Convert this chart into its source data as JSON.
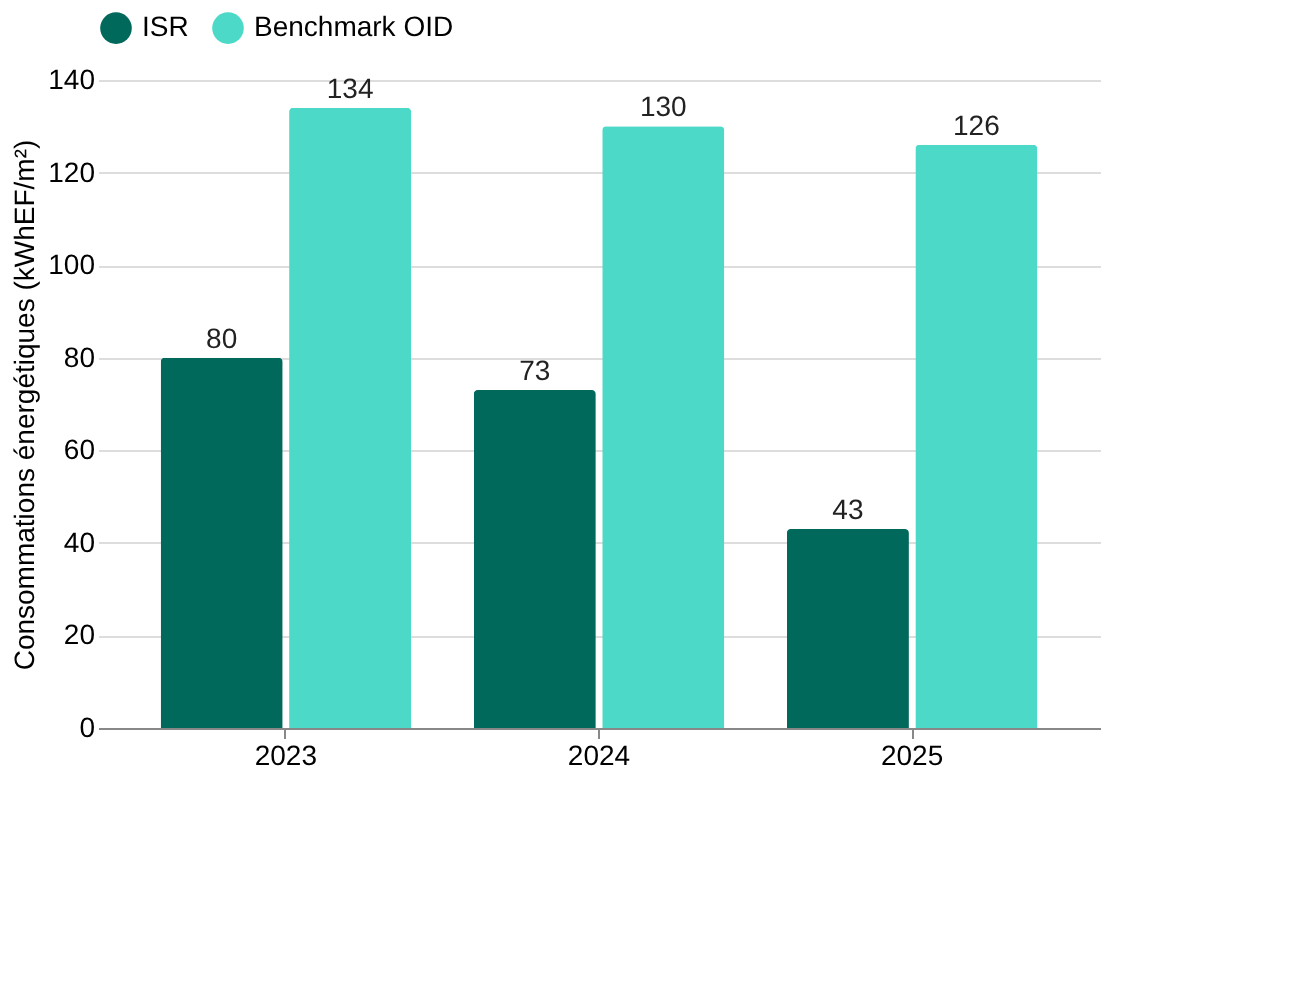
{
  "chart_data": {
    "type": "bar",
    "ylabel": "Consommations énergétiques (kWhEF/m²)",
    "categories": [
      "2023",
      "2024",
      "2025"
    ],
    "series": [
      {
        "name": "ISR",
        "color": "#00695c",
        "values": [
          80,
          73,
          43
        ]
      },
      {
        "name": "Benchmark OID",
        "color": "#4dd9c7",
        "values": [
          134,
          130,
          126
        ]
      }
    ],
    "ylim": [
      0,
      140
    ],
    "yticks": [
      0,
      20,
      40,
      60,
      80,
      100,
      120,
      140
    ],
    "grid": "y",
    "legend": "top",
    "data_labels": true
  }
}
